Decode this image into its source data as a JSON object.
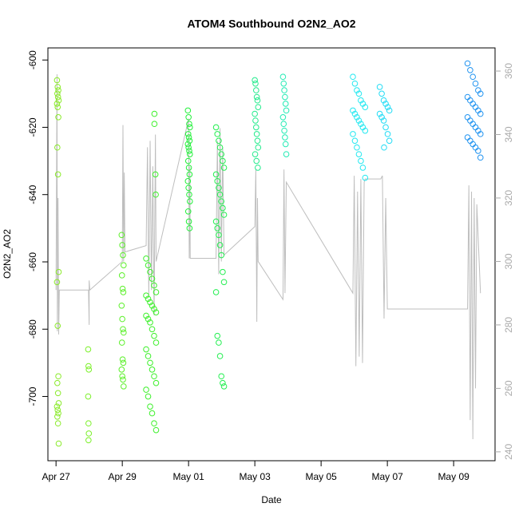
{
  "chart_data": {
    "type": "scatter",
    "title": "ATOM4 Southbound O2N2_AO2",
    "x_label": "Date",
    "y_label": "O2N2_AO2",
    "xlim": [
      -0.245,
      13.25
    ],
    "xticks": [
      {
        "value": 0,
        "label": "Apr 27"
      },
      {
        "value": 2,
        "label": "Apr 29"
      },
      {
        "value": 4,
        "label": "May 01"
      },
      {
        "value": 6,
        "label": "May 03"
      },
      {
        "value": 8,
        "label": "May 05"
      },
      {
        "value": 10,
        "label": "May 07"
      },
      {
        "value": 12,
        "label": "May 09"
      }
    ],
    "ylim": [
      -719.1,
      -596.4
    ],
    "yticks": [
      -700,
      -680,
      -660,
      -640,
      -620,
      -600
    ],
    "y2lim": [
      237.2,
      367.3
    ],
    "y2ticks": [
      240,
      260,
      280,
      300,
      320,
      340,
      360
    ],
    "series": [
      {
        "color": "#8aeb2a",
        "x": [
          0.03,
          0.05,
          0.07,
          0.04,
          0.06,
          0.08,
          0.03,
          0.05,
          0.07,
          0.04,
          0.06,
          0.08,
          0.03,
          0.05,
          0.07,
          0.04,
          0.06,
          0.08,
          0.03,
          0.05,
          0.07,
          0.04,
          0.06,
          0.08
        ],
        "values": [
          -606,
          -608,
          -609,
          -610,
          -611,
          -612,
          -613,
          -614,
          -617,
          -626,
          -634,
          -663,
          -666,
          -679,
          -694,
          -696,
          -699,
          -702,
          -703,
          -704,
          -705,
          -706,
          -708,
          -714
        ]
      },
      {
        "color": "#7cf02a",
        "x": [
          0.97,
          0.98,
          0.99,
          0.97,
          0.98,
          0.99,
          0.98
        ],
        "values": [
          -686,
          -691,
          -692,
          -700,
          -708,
          -711,
          -713
        ]
      },
      {
        "color": "#5cf02a",
        "x": [
          1.98,
          2.0,
          2.02,
          2.04,
          1.99,
          2.01,
          2.03,
          1.98,
          2.0,
          2.02,
          2.04,
          1.99,
          2.01,
          2.03,
          1.98,
          2.0,
          2.02,
          2.04
        ],
        "values": [
          -652,
          -655,
          -658,
          -661,
          -664,
          -668,
          -669,
          -673,
          -677,
          -680,
          -681,
          -684,
          -689,
          -690,
          -692,
          -694,
          -695,
          -697
        ]
      },
      {
        "color": "#3cf02a",
        "x": [
          2.72,
          2.78,
          2.84,
          2.9,
          2.96,
          3.02,
          2.72,
          2.78,
          2.84,
          2.9,
          2.96,
          3.02,
          2.72,
          2.78,
          2.84,
          2.9,
          2.96,
          3.02,
          2.72,
          2.78,
          2.84,
          2.9,
          2.96,
          3.02,
          2.72,
          2.78,
          2.84,
          2.9,
          2.96,
          3.02,
          2.97,
          2.97,
          3.0,
          3.01
        ],
        "values": [
          -659,
          -661,
          -663,
          -665,
          -667,
          -669,
          -670,
          -671,
          -672,
          -673,
          -674,
          -675,
          -676,
          -677,
          -678,
          -680,
          -682,
          -684,
          -686,
          -688,
          -690,
          -692,
          -694,
          -696,
          -698,
          -700,
          -703,
          -705,
          -708,
          -710,
          -616,
          -619,
          -634,
          -640
        ]
      },
      {
        "color": "#22f03a",
        "x": [
          3.98,
          4.0,
          4.02,
          4.04,
          3.99,
          4.01,
          4.03,
          3.98,
          4.0,
          4.02,
          4.04,
          3.99,
          4.01,
          4.03,
          3.98,
          4.0,
          4.02,
          4.04,
          3.99,
          4.01,
          4.03
        ],
        "values": [
          -615,
          -617,
          -619,
          -620,
          -622,
          -623,
          -624,
          -625,
          -626,
          -627,
          -628,
          -630,
          -632,
          -634,
          -636,
          -638,
          -640,
          -642,
          -645,
          -648,
          -650
        ]
      },
      {
        "color": "#22ef50",
        "x": [
          4.83,
          4.87,
          4.91,
          4.95,
          4.99,
          5.03,
          5.07,
          4.83,
          4.87,
          4.91,
          4.95,
          4.99,
          5.03,
          5.07,
          4.83,
          4.87,
          4.91,
          4.95,
          4.99,
          5.03,
          5.07,
          4.83,
          4.87,
          4.91,
          4.95,
          4.99,
          5.03,
          5.07
        ],
        "values": [
          -620,
          -622,
          -624,
          -626,
          -628,
          -630,
          -632,
          -634,
          -636,
          -638,
          -640,
          -642,
          -644,
          -646,
          -648,
          -650,
          -652,
          -655,
          -658,
          -663,
          -666,
          -669,
          -682,
          -684,
          -688,
          -694,
          -696,
          -697
        ]
      },
      {
        "color": "#22eb8c",
        "x": [
          6.0,
          6.02,
          6.04,
          6.06,
          6.08,
          6.1,
          6.0,
          6.02,
          6.04,
          6.06,
          6.08,
          6.1,
          6.01,
          6.05,
          6.09
        ],
        "values": [
          -606,
          -607,
          -609,
          -611,
          -612,
          -614,
          -616,
          -618,
          -620,
          -622,
          -624,
          -626,
          -628,
          -630,
          -632
        ]
      },
      {
        "color": "#22ebb4",
        "x": [
          6.85,
          6.87,
          6.89,
          6.91,
          6.93,
          6.95,
          6.85,
          6.87,
          6.89,
          6.91,
          6.93,
          6.95
        ],
        "values": [
          -605,
          -607,
          -609,
          -611,
          -613,
          -615,
          -617,
          -619,
          -621,
          -623,
          -625,
          -628
        ]
      },
      {
        "color": "#22e8f0",
        "x": [
          8.96,
          9.02,
          9.08,
          9.14,
          9.2,
          9.26,
          9.33,
          8.96,
          9.02,
          9.08,
          9.14,
          9.2,
          9.26,
          9.33,
          8.96,
          9.02,
          9.08,
          9.14,
          9.2,
          9.26,
          9.33
        ],
        "values": [
          -605,
          -607,
          -609,
          -610,
          -612,
          -613,
          -614,
          -615,
          -616,
          -617,
          -618,
          -619,
          -620,
          -621,
          -622,
          -624,
          -626,
          -628,
          -630,
          -632,
          -635
        ]
      },
      {
        "color": "#22dcf5",
        "x": [
          9.77,
          9.83,
          9.89,
          9.95,
          10.01,
          10.06,
          9.77,
          9.83,
          9.89,
          9.95,
          10.01,
          10.06,
          9.9
        ],
        "values": [
          -608,
          -610,
          -612,
          -613,
          -614,
          -615,
          -616,
          -617,
          -618,
          -620,
          -622,
          -624,
          -626
        ]
      },
      {
        "color": "#2294f0",
        "x": [
          12.42,
          12.5,
          12.58,
          12.66,
          12.74,
          12.81,
          12.42,
          12.5,
          12.58,
          12.66,
          12.74,
          12.81,
          12.42,
          12.5,
          12.58,
          12.66,
          12.74,
          12.81,
          12.42,
          12.5,
          12.58,
          12.66,
          12.74,
          12.81
        ],
        "values": [
          -601,
          -603,
          -605,
          -607,
          -609,
          -610,
          -611,
          -612,
          -613,
          -614,
          -615,
          -616,
          -617,
          -618,
          -619,
          -620,
          -621,
          -622,
          -623,
          -624,
          -625,
          -626,
          -627,
          -629
        ]
      },
      {
        "type": "line",
        "axis": "y2",
        "color": "#bebebe",
        "x": [
          0.0,
          0.03,
          0.04,
          0.06,
          0.08,
          0.1,
          0.98,
          1.0,
          1.0,
          1.02,
          2.0,
          2.02,
          2.04,
          2.06,
          2.08,
          2.72,
          2.76,
          2.8,
          2.84,
          2.88,
          2.92,
          2.96,
          3.0,
          3.02,
          3.98,
          4.0,
          4.02,
          4.04,
          4.05,
          4.83,
          4.87,
          4.91,
          4.95,
          4.99,
          5.03,
          5.07,
          6.0,
          6.03,
          6.06,
          6.08,
          6.1,
          6.85,
          6.88,
          6.91,
          6.95,
          8.96,
          9.0,
          9.05,
          9.1,
          9.15,
          9.2,
          9.25,
          9.3,
          9.33,
          9.8,
          9.85,
          9.9,
          9.95,
          10.0,
          12.42,
          12.46,
          12.5,
          12.54,
          12.58,
          12.62,
          12.66,
          12.7,
          12.81
        ],
        "values": [
          291,
          359,
          278,
          320,
          277,
          291,
          291,
          280,
          294,
          291,
          300,
          343,
          300,
          328,
          303,
          305,
          336,
          289,
          338,
          291,
          330,
          283,
          340,
          300,
          344,
          345,
          301,
          330,
          301,
          301,
          338,
          296,
          342,
          300,
          336,
          302,
          311,
          329,
          281,
          320,
          300,
          288,
          329,
          290,
          325,
          290,
          327,
          267,
          322,
          270,
          326,
          268,
          325,
          326,
          326,
          327,
          282,
          320,
          285,
          285,
          324,
          250,
          322,
          244,
          320,
          260,
          318,
          290
        ]
      }
    ]
  }
}
